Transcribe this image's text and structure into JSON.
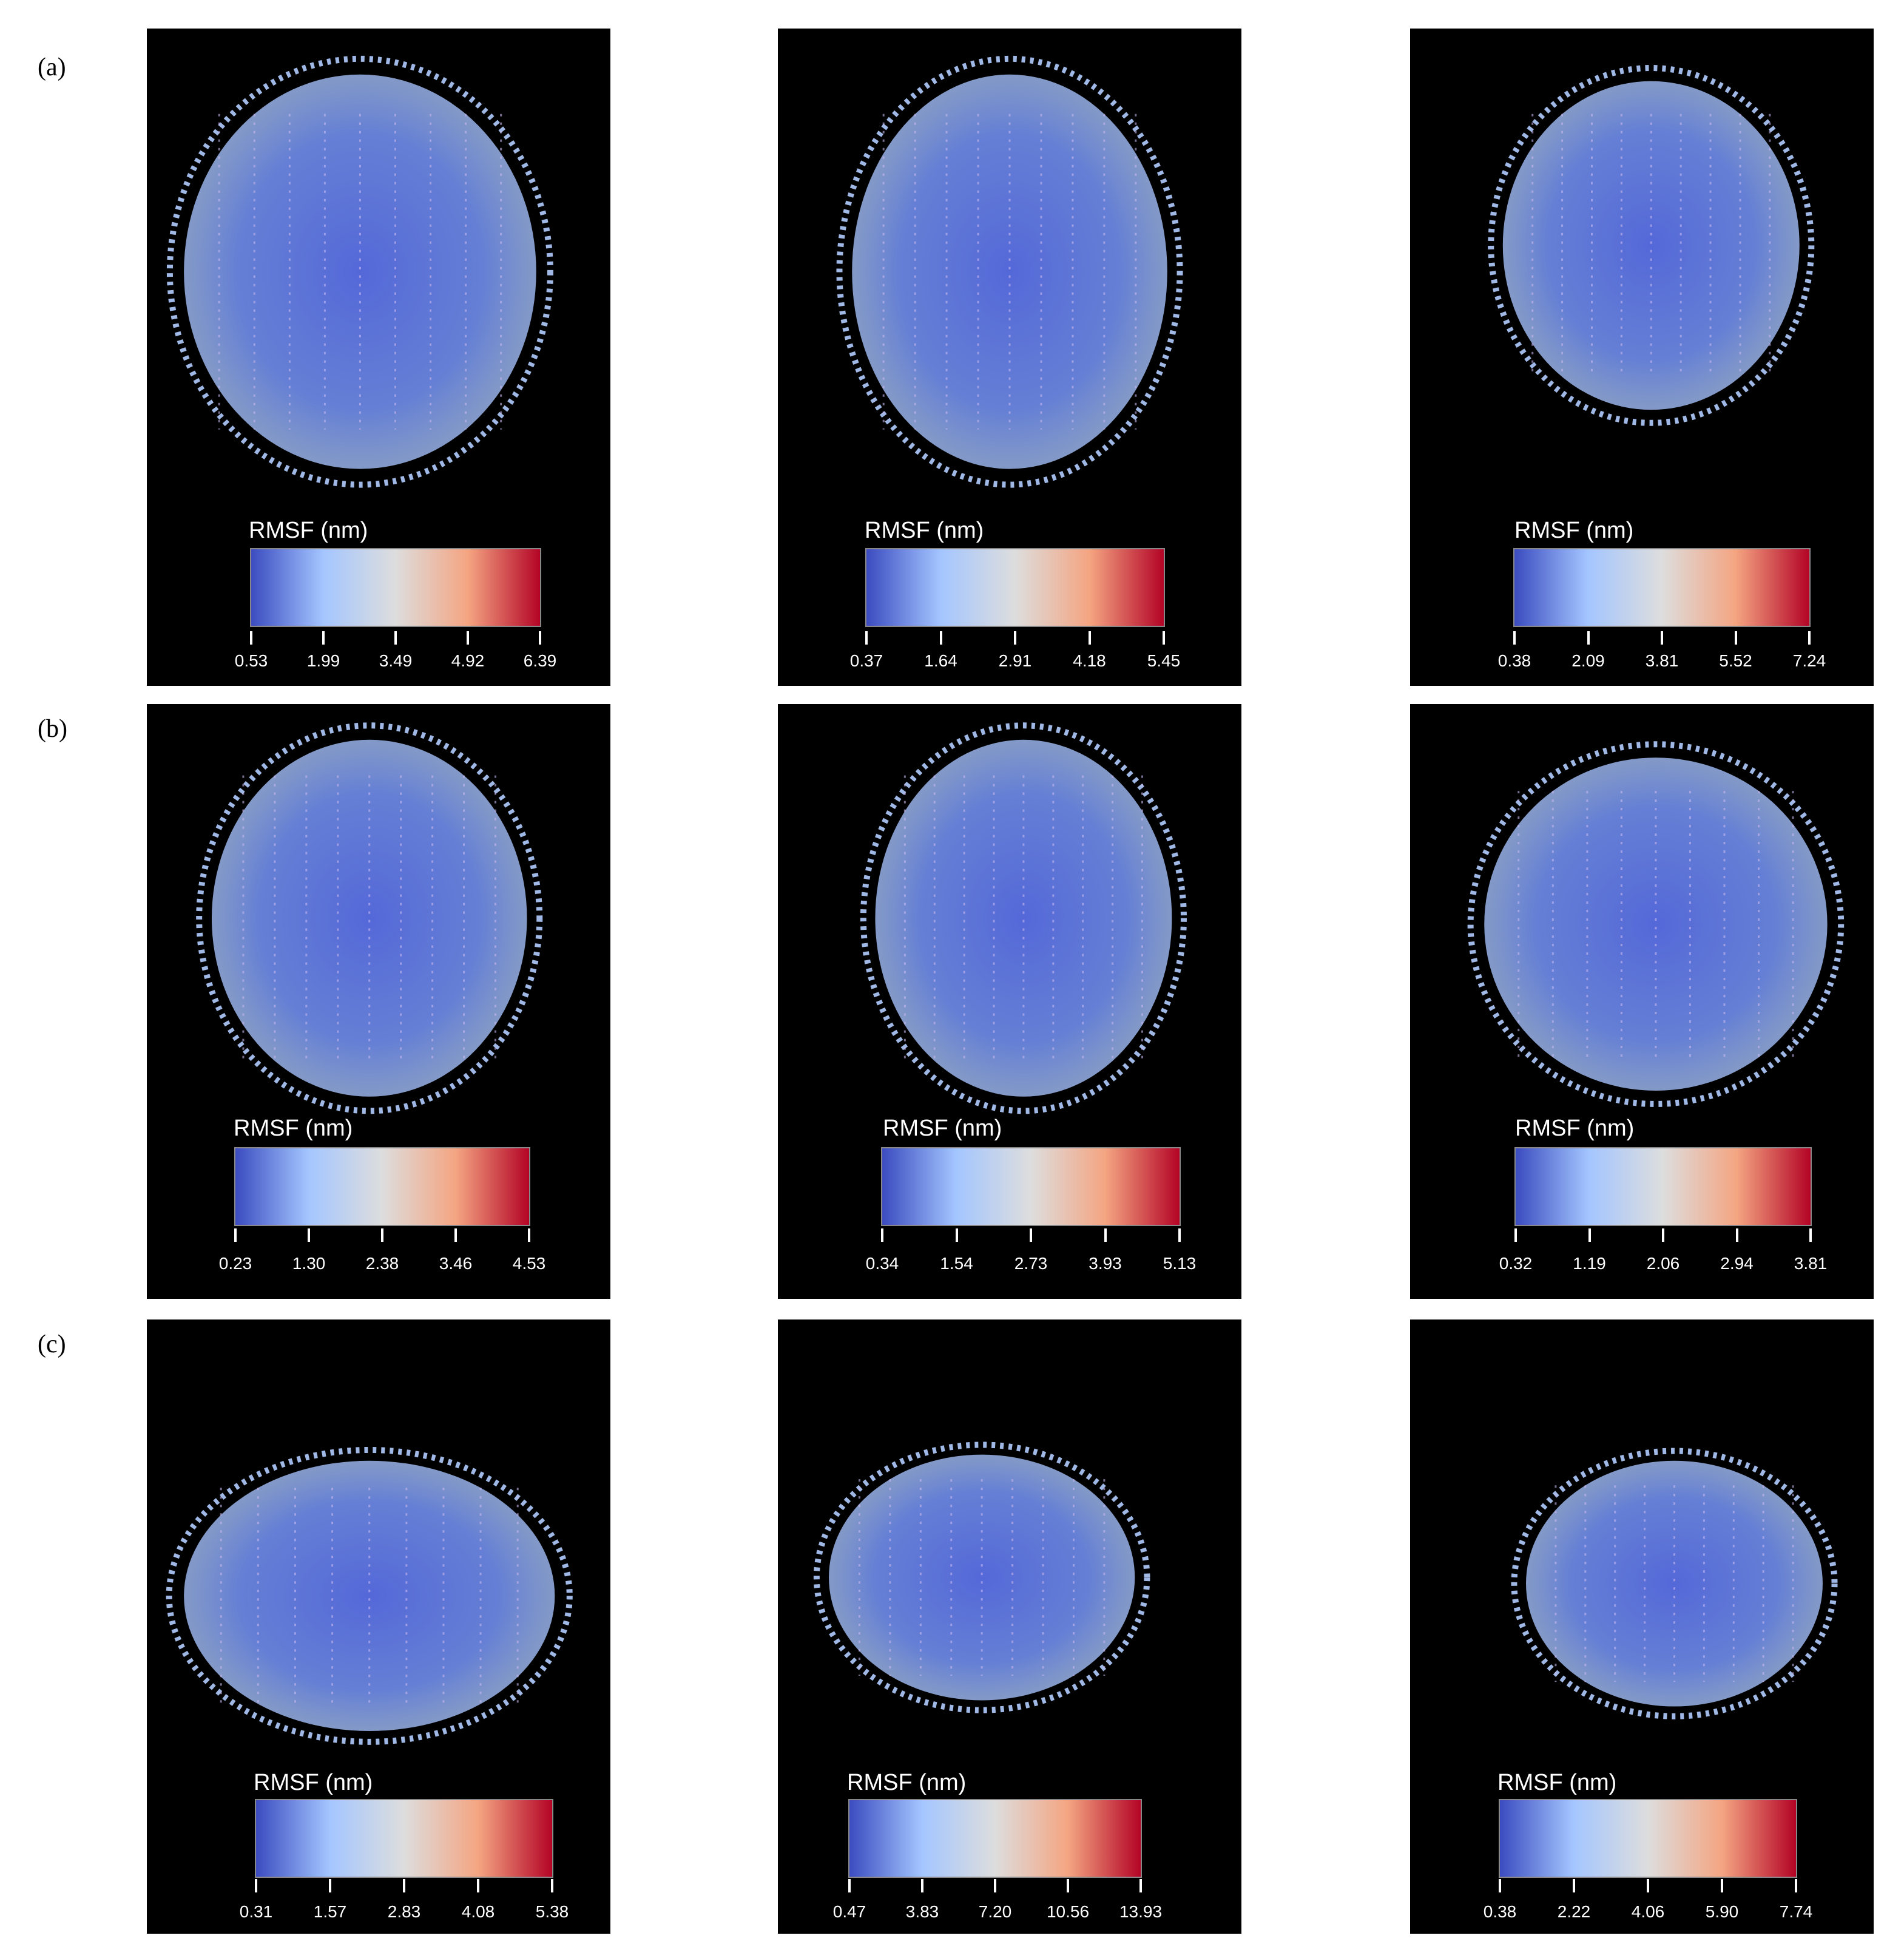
{
  "figure": {
    "rows": [
      {
        "label": "(a)",
        "panels": [
          {
            "colorbar_title": "RMSF (nm)",
            "ticks": [
              "0.53",
              "1.99",
              "3.49",
              "4.92",
              "6.39"
            ]
          },
          {
            "colorbar_title": "RMSF (nm)",
            "ticks": [
              "0.37",
              "1.64",
              "2.91",
              "4.18",
              "5.45"
            ]
          },
          {
            "colorbar_title": "RMSF (nm)",
            "ticks": [
              "0.38",
              "2.09",
              "3.81",
              "5.52",
              "7.24"
            ]
          }
        ]
      },
      {
        "label": "(b)",
        "panels": [
          {
            "colorbar_title": "RMSF (nm)",
            "ticks": [
              "0.23",
              "1.30",
              "2.38",
              "3.46",
              "4.53"
            ]
          },
          {
            "colorbar_title": "RMSF (nm)",
            "ticks": [
              "0.34",
              "1.54",
              "2.73",
              "3.93",
              "5.13"
            ]
          },
          {
            "colorbar_title": "RMSF (nm)",
            "ticks": [
              "0.32",
              "1.19",
              "2.06",
              "2.94",
              "3.81"
            ]
          }
        ]
      },
      {
        "label": "(c)",
        "panels": [
          {
            "colorbar_title": "RMSF (nm)",
            "ticks": [
              "0.31",
              "1.57",
              "2.83",
              "4.08",
              "5.38"
            ]
          },
          {
            "colorbar_title": "RMSF (nm)",
            "ticks": [
              "0.47",
              "3.83",
              "7.20",
              "10.56",
              "13.93"
            ]
          },
          {
            "colorbar_title": "RMSF (nm)",
            "ticks": [
              "0.38",
              "2.22",
              "4.06",
              "5.90",
              "7.74"
            ]
          }
        ]
      }
    ],
    "colormap": [
      "#3b4cc0",
      "#a4c6ff",
      "#dddddd",
      "#f4a582",
      "#b40426"
    ]
  }
}
